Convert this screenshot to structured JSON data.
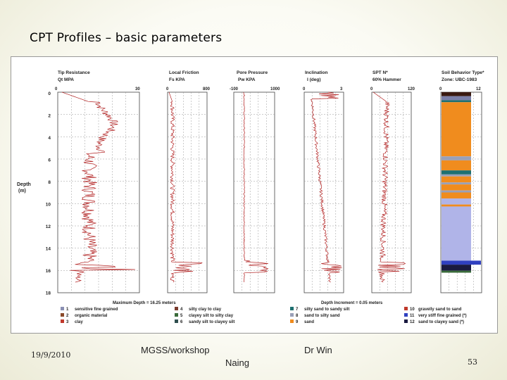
{
  "slide": {
    "title": "CPT Profiles – basic parameters",
    "footer_date": "19/9/2010",
    "footer_workshop": "MGSS/workshop",
    "footer_author_first": "Dr Win",
    "footer_author_last": "Naing",
    "page_number": "53"
  },
  "figure": {
    "depth_label": "Depth",
    "depth_unit": "(m)",
    "depth_ticks": [
      "0",
      "2",
      "4",
      "6",
      "8",
      "10",
      "12",
      "14",
      "16",
      "18"
    ],
    "max_depth_note": "Maximum Depth = 16.25 meters",
    "depth_increment_note": "Depth Increment = 0.05 meters",
    "panels": [
      {
        "title": "Tip Resistance",
        "subtitle": "Qt MPA",
        "min": "0",
        "max": "30"
      },
      {
        "title": "Local Friction",
        "subtitle": "Fs KPA",
        "min": "0",
        "max": "800"
      },
      {
        "title": "Pore Pressure",
        "subtitle": "Pw KPA",
        "min": "-100",
        "max": "1000"
      },
      {
        "title": "Inclination",
        "subtitle": "I (deg)",
        "min": "0",
        "max": "3"
      },
      {
        "title": "SPT N*",
        "subtitle": "60% Hammer",
        "min": "0",
        "max": "120"
      },
      {
        "title": "Soil Behavior Type*",
        "subtitle": "Zone: UBC-1983",
        "min": "0",
        "max": "12"
      }
    ],
    "legend": [
      {
        "num": "1",
        "text": "sensitive fine grained",
        "color": "#8a8fb3"
      },
      {
        "num": "2",
        "text": "organic material",
        "color": "#8b4a2a"
      },
      {
        "num": "3",
        "text": "clay",
        "color": "#c0392b"
      },
      {
        "num": "4",
        "text": "silty clay to clay",
        "color": "#7a3b2e"
      },
      {
        "num": "5",
        "text": "clayey silt to silty clay",
        "color": "#3a6b3a"
      },
      {
        "num": "6",
        "text": "sandy silt to clayey silt",
        "color": "#2f4f4f"
      },
      {
        "num": "7",
        "text": "silty sand to sandy silt",
        "color": "#1e7070"
      },
      {
        "num": "8",
        "text": "sand to silty sand",
        "color": "#9aa0b8"
      },
      {
        "num": "9",
        "text": "sand",
        "color": "#f08c1e"
      },
      {
        "num": "10",
        "text": "gravelly sand to sand",
        "color": "#c0392b"
      },
      {
        "num": "11",
        "text": "very stiff fine grained (*)",
        "color": "#3040c0"
      },
      {
        "num": "12",
        "text": "sand to clayey sand (*)",
        "color": "#1a1a40"
      }
    ]
  }
}
